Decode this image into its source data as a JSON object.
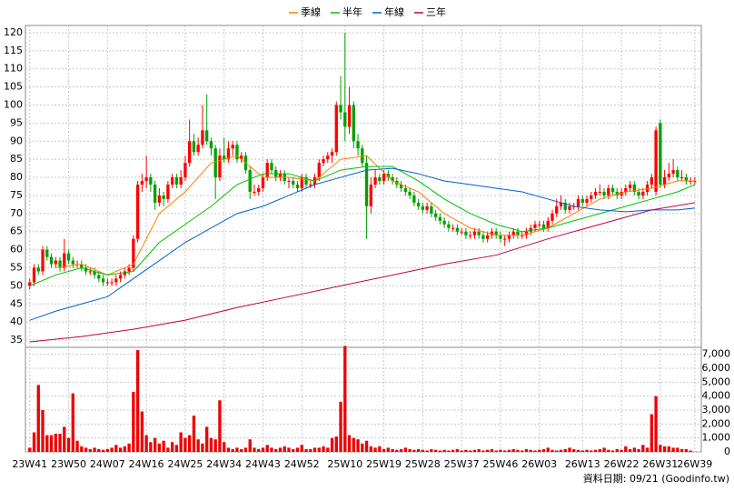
{
  "chart_data": {
    "type": "candlestick",
    "xlim": [
      -1,
      155.5
    ],
    "xticks": [
      {
        "value": 0,
        "label": "23W41"
      },
      {
        "value": 9,
        "label": "23W50"
      },
      {
        "value": 18,
        "label": "24W07"
      },
      {
        "value": 27,
        "label": "24W16"
      },
      {
        "value": 36,
        "label": "24W25"
      },
      {
        "value": 45,
        "label": "24W34"
      },
      {
        "value": 54,
        "label": "24W43"
      },
      {
        "value": 63,
        "label": "24W52"
      },
      {
        "value": 73,
        "label": "25W10"
      },
      {
        "value": 82,
        "label": "25W19"
      },
      {
        "value": 91,
        "label": "25W28"
      },
      {
        "value": 100,
        "label": "25W37"
      },
      {
        "value": 109,
        "label": "25W46"
      },
      {
        "value": 118,
        "label": "26W03"
      },
      {
        "value": 128,
        "label": "26W13"
      },
      {
        "value": 137,
        "label": "26W22"
      },
      {
        "value": 146,
        "label": "26W31"
      },
      {
        "value": 154,
        "label": "26W39"
      }
    ],
    "ylim": [
      33,
      122
    ],
    "yticks": [
      35,
      40,
      45,
      50,
      55,
      60,
      65,
      70,
      75,
      80,
      85,
      90,
      95,
      100,
      105,
      110,
      115,
      120
    ],
    "y2lim": [
      0,
      7500
    ],
    "y2ticks": [
      0,
      {
        "value": 1000,
        "label": "1,000"
      },
      {
        "value": 2000,
        "label": "2,000"
      },
      {
        "value": 3000,
        "label": "3,000"
      },
      {
        "value": 4000,
        "label": "4,000"
      },
      {
        "value": 5000,
        "label": "5,000"
      },
      {
        "value": 6000,
        "label": "6,000"
      },
      {
        "value": 7000,
        "label": "7,000"
      }
    ],
    "grid": true,
    "up_color": "#ff0000",
    "down_color": "#00a000",
    "volume_color": "#ee0000",
    "ohlc": [
      [
        50,
        52,
        49,
        51
      ],
      [
        51,
        56,
        50,
        55
      ],
      [
        55,
        56,
        53,
        54
      ],
      [
        54,
        61,
        53,
        60
      ],
      [
        60,
        61,
        57,
        58
      ],
      [
        58,
        59,
        55,
        56
      ],
      [
        56,
        58,
        55,
        57
      ],
      [
        57,
        58,
        54,
        55
      ],
      [
        55,
        63,
        54,
        59
      ],
      [
        59,
        60,
        56,
        57
      ],
      [
        57,
        58,
        55,
        56
      ],
      [
        56,
        57,
        55,
        56
      ],
      [
        56,
        57,
        54,
        55
      ],
      [
        55,
        56,
        53,
        54
      ],
      [
        54,
        55,
        53,
        54
      ],
      [
        54,
        55,
        52,
        53
      ],
      [
        53,
        54,
        51,
        52
      ],
      [
        52,
        53,
        50,
        51
      ],
      [
        51,
        52,
        50,
        51
      ],
      [
        51,
        52,
        50,
        51
      ],
      [
        51,
        53,
        50,
        52
      ],
      [
        52,
        54,
        51,
        53
      ],
      [
        53,
        55,
        52,
        54
      ],
      [
        54,
        56,
        53,
        55
      ],
      [
        55,
        64,
        54,
        63
      ],
      [
        63,
        79,
        62,
        78
      ],
      [
        78,
        81,
        76,
        79
      ],
      [
        79,
        86,
        77,
        80
      ],
      [
        80,
        81,
        76,
        78
      ],
      [
        78,
        79,
        71,
        73
      ],
      [
        73,
        77,
        72,
        75
      ],
      [
        75,
        76,
        72,
        74
      ],
      [
        74,
        79,
        73,
        78
      ],
      [
        78,
        81,
        77,
        80
      ],
      [
        80,
        81,
        77,
        78
      ],
      [
        78,
        82,
        77,
        80
      ],
      [
        80,
        86,
        79,
        84
      ],
      [
        84,
        96,
        83,
        90
      ],
      [
        90,
        92,
        86,
        87
      ],
      [
        87,
        91,
        86,
        89
      ],
      [
        89,
        100,
        88,
        93
      ],
      [
        93,
        103,
        89,
        90
      ],
      [
        90,
        91,
        86,
        88
      ],
      [
        88,
        89,
        74,
        80
      ],
      [
        80,
        88,
        79,
        86
      ],
      [
        86,
        91,
        84,
        85
      ],
      [
        85,
        90,
        84,
        88
      ],
      [
        88,
        90,
        86,
        89
      ],
      [
        89,
        90,
        84,
        85
      ],
      [
        85,
        87,
        84,
        86
      ],
      [
        86,
        87,
        81,
        82
      ],
      [
        82,
        83,
        74,
        76
      ],
      [
        76,
        78,
        75,
        76
      ],
      [
        76,
        78,
        75,
        77
      ],
      [
        77,
        81,
        76,
        80
      ],
      [
        80,
        85,
        79,
        84
      ],
      [
        84,
        85,
        81,
        82
      ],
      [
        82,
        83,
        79,
        80
      ],
      [
        80,
        82,
        79,
        81
      ],
      [
        81,
        82,
        78,
        79
      ],
      [
        79,
        80,
        77,
        79
      ],
      [
        79,
        80,
        77,
        78
      ],
      [
        78,
        79,
        76,
        77
      ],
      [
        77,
        81,
        76,
        80
      ],
      [
        80,
        81,
        77,
        78
      ],
      [
        78,
        79,
        77,
        78
      ],
      [
        78,
        81,
        77,
        80
      ],
      [
        80,
        85,
        79,
        84
      ],
      [
        84,
        86,
        83,
        85
      ],
      [
        85,
        87,
        84,
        86
      ],
      [
        86,
        88,
        84,
        87
      ],
      [
        87,
        101,
        86,
        100
      ],
      [
        100,
        108,
        96,
        98
      ],
      [
        98,
        120,
        90,
        94
      ],
      [
        94,
        105,
        92,
        100
      ],
      [
        100,
        101,
        88,
        90
      ],
      [
        90,
        92,
        86,
        88
      ],
      [
        88,
        89,
        83,
        84
      ],
      [
        84,
        86,
        63,
        72
      ],
      [
        72,
        80,
        70,
        78
      ],
      [
        78,
        82,
        77,
        80
      ],
      [
        80,
        81,
        78,
        79
      ],
      [
        79,
        82,
        78,
        81
      ],
      [
        81,
        82,
        79,
        80
      ],
      [
        80,
        81,
        78,
        79
      ],
      [
        79,
        80,
        77,
        78
      ],
      [
        78,
        79,
        76,
        77
      ],
      [
        77,
        78,
        75,
        76
      ],
      [
        76,
        77,
        74,
        75
      ],
      [
        75,
        76,
        72,
        73
      ],
      [
        73,
        74,
        71,
        72
      ],
      [
        72,
        73,
        70,
        71
      ],
      [
        71,
        73,
        70,
        72
      ],
      [
        72,
        73,
        69,
        70
      ],
      [
        70,
        71,
        68,
        69
      ],
      [
        69,
        70,
        67,
        68
      ],
      [
        68,
        69,
        66,
        67
      ],
      [
        67,
        68,
        65,
        66
      ],
      [
        66,
        67,
        65,
        66
      ],
      [
        66,
        67,
        64,
        65
      ],
      [
        65,
        66,
        64,
        65
      ],
      [
        65,
        66,
        63,
        64
      ],
      [
        64,
        65,
        63,
        64
      ],
      [
        64,
        66,
        63,
        65
      ],
      [
        65,
        66,
        63,
        64
      ],
      [
        64,
        65,
        62,
        63
      ],
      [
        63,
        65,
        62,
        64
      ],
      [
        64,
        66,
        63,
        65
      ],
      [
        65,
        66,
        63,
        64
      ],
      [
        64,
        65,
        62,
        63
      ],
      [
        63,
        64,
        61,
        63
      ],
      [
        63,
        65,
        62,
        64
      ],
      [
        64,
        66,
        63,
        65
      ],
      [
        65,
        66,
        63,
        64
      ],
      [
        64,
        65,
        63,
        64
      ],
      [
        64,
        66,
        63,
        65
      ],
      [
        65,
        67,
        64,
        66
      ],
      [
        66,
        68,
        65,
        67
      ],
      [
        67,
        68,
        66,
        67
      ],
      [
        67,
        68,
        65,
        66
      ],
      [
        66,
        69,
        65,
        68
      ],
      [
        68,
        71,
        67,
        70
      ],
      [
        70,
        74,
        69,
        72
      ],
      [
        72,
        75,
        71,
        73
      ],
      [
        73,
        74,
        70,
        71
      ],
      [
        71,
        73,
        70,
        72
      ],
      [
        72,
        73,
        71,
        72
      ],
      [
        72,
        75,
        71,
        74
      ],
      [
        74,
        75,
        72,
        73
      ],
      [
        73,
        75,
        72,
        74
      ],
      [
        74,
        76,
        73,
        75
      ],
      [
        75,
        77,
        74,
        76
      ],
      [
        76,
        78,
        75,
        76
      ],
      [
        76,
        77,
        74,
        75
      ],
      [
        75,
        78,
        74,
        77
      ],
      [
        77,
        78,
        75,
        76
      ],
      [
        76,
        77,
        74,
        75
      ],
      [
        75,
        77,
        74,
        76
      ],
      [
        76,
        78,
        75,
        77
      ],
      [
        77,
        79,
        76,
        78
      ],
      [
        78,
        79,
        75,
        76
      ],
      [
        76,
        77,
        74,
        75
      ],
      [
        75,
        77,
        74,
        76
      ],
      [
        76,
        79,
        75,
        78
      ],
      [
        78,
        81,
        77,
        80
      ],
      [
        76,
        94,
        75,
        93
      ],
      [
        95,
        96,
        77,
        78
      ],
      [
        78,
        82,
        77,
        80
      ],
      [
        80,
        84,
        79,
        81
      ],
      [
        81,
        85,
        80,
        82
      ],
      [
        82,
        83,
        79,
        80
      ],
      [
        80,
        82,
        79,
        80
      ],
      [
        80,
        81,
        78,
        79
      ],
      [
        79,
        80,
        78,
        79
      ],
      [
        79,
        80,
        78,
        79
      ]
    ],
    "volume": [
      300,
      1400,
      4800,
      3000,
      1200,
      1200,
      1300,
      1300,
      1800,
      1000,
      4200,
      800,
      400,
      300,
      200,
      300,
      200,
      150,
      200,
      300,
      500,
      300,
      400,
      600,
      4300,
      7300,
      2900,
      1200,
      700,
      1000,
      600,
      800,
      300,
      700,
      500,
      1400,
      1000,
      1200,
      2600,
      900,
      600,
      1800,
      1000,
      900,
      3700,
      700,
      300,
      200,
      300,
      200,
      300,
      900,
      300,
      200,
      300,
      500,
      300,
      200,
      300,
      400,
      300,
      200,
      300,
      500,
      200,
      200,
      300,
      300,
      400,
      300,
      1000,
      1100,
      3600,
      7600,
      1200,
      1000,
      900,
      600,
      800,
      400,
      300,
      400,
      200,
      300,
      200,
      150,
      200,
      300,
      200,
      150,
      200,
      150,
      100,
      200,
      150,
      100,
      150,
      100,
      150,
      200,
      100,
      150,
      100,
      150,
      200,
      100,
      150,
      200,
      100,
      150,
      100,
      150,
      200,
      150,
      100,
      200,
      150,
      100,
      150,
      200,
      300,
      150,
      100,
      150,
      200,
      300,
      200,
      150,
      100,
      150,
      100,
      150,
      200,
      300,
      150,
      100,
      200,
      150,
      400,
      200,
      300,
      200,
      500,
      300,
      2700,
      4000,
      500,
      400,
      400,
      300,
      300,
      200,
      200,
      100
    ],
    "ma": [
      {
        "name": "季線",
        "color": "#ff7f00",
        "x": [
          6,
          12,
          18,
          24,
          30,
          36,
          42,
          48,
          54,
          60,
          66,
          72,
          78,
          84,
          90,
          96,
          102,
          108,
          114,
          120,
          126,
          132,
          138,
          144,
          150,
          154
        ],
        "values": [
          55,
          56,
          53,
          56,
          70,
          76,
          84,
          86,
          80,
          80,
          79,
          85,
          86,
          79,
          76,
          70,
          66,
          64,
          64,
          66,
          70,
          74,
          76,
          77,
          79,
          79
        ]
      },
      {
        "name": "半年",
        "color": "#00c000",
        "x": [
          0,
          6,
          12,
          18,
          24,
          30,
          36,
          42,
          48,
          54,
          60,
          66,
          72,
          78,
          84,
          90,
          96,
          102,
          108,
          114,
          120,
          126,
          132,
          138,
          144,
          150,
          154
        ],
        "values": [
          50,
          53,
          55,
          53,
          54,
          62,
          67,
          72,
          78,
          81,
          81,
          79,
          82,
          83,
          83,
          79,
          74,
          70,
          67,
          65,
          66,
          68,
          70,
          72,
          74,
          76,
          78
        ]
      },
      {
        "name": "年線",
        "color": "#0060d0",
        "x": [
          0,
          6,
          12,
          18,
          24,
          30,
          36,
          42,
          48,
          54,
          60,
          66,
          72,
          78,
          84,
          90,
          96,
          102,
          108,
          114,
          120,
          126,
          132,
          138,
          144,
          150,
          154
        ],
        "values": [
          40.5,
          43,
          45,
          47,
          52,
          57,
          62,
          66,
          70,
          72,
          75,
          78,
          80,
          82,
          82.5,
          81,
          79,
          78,
          77,
          76,
          74,
          72,
          71,
          70.5,
          71,
          71,
          71.5
        ]
      },
      {
        "name": "三年",
        "color": "#c0004a",
        "x": [
          0,
          12,
          24,
          36,
          48,
          60,
          72,
          84,
          96,
          108,
          120,
          132,
          144,
          154
        ],
        "values": [
          34.5,
          36,
          38,
          40.5,
          44,
          47,
          50,
          53,
          56,
          58.5,
          63,
          67,
          71,
          73
        ]
      }
    ],
    "footer": "資料日期: 09/21  (Goodinfo.tw)"
  }
}
